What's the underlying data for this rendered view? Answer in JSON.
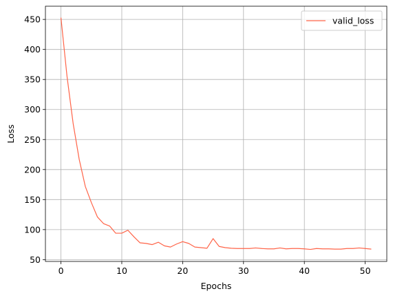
{
  "chart_data": {
    "type": "line",
    "title": "",
    "xlabel": "Epochs",
    "ylabel": "Loss",
    "xlim": [
      -2.55,
      53.55
    ],
    "ylim": [
      47,
      472
    ],
    "xticks": [
      0,
      10,
      20,
      30,
      40,
      50
    ],
    "yticks": [
      50,
      100,
      150,
      200,
      250,
      300,
      350,
      400,
      450
    ],
    "grid": true,
    "legend_position": "top-right",
    "series": [
      {
        "name": "valid_loss",
        "color": "#ff6347",
        "x": [
          0,
          1,
          2,
          3,
          4,
          5,
          6,
          7,
          8,
          9,
          10,
          11,
          12,
          13,
          14,
          15,
          16,
          17,
          18,
          19,
          20,
          21,
          22,
          23,
          24,
          25,
          26,
          27,
          28,
          29,
          30,
          31,
          32,
          33,
          34,
          35,
          36,
          37,
          38,
          39,
          40,
          41,
          42,
          43,
          44,
          45,
          46,
          47,
          48,
          49,
          50,
          51
        ],
        "values": [
          453,
          355,
          277,
          217,
          172,
          145,
          121,
          110,
          106,
          94,
          94,
          99,
          88,
          78,
          77,
          75,
          79,
          73,
          71,
          76,
          80,
          77,
          71,
          70,
          69,
          85,
          72,
          70,
          69,
          68.5,
          68.5,
          68.5,
          69.5,
          68.5,
          68,
          68,
          69.5,
          68,
          68.5,
          68.5,
          68,
          67,
          68.5,
          68,
          68,
          67.5,
          67.5,
          68.5,
          68.5,
          69.5,
          68.5,
          67.5
        ]
      }
    ]
  }
}
